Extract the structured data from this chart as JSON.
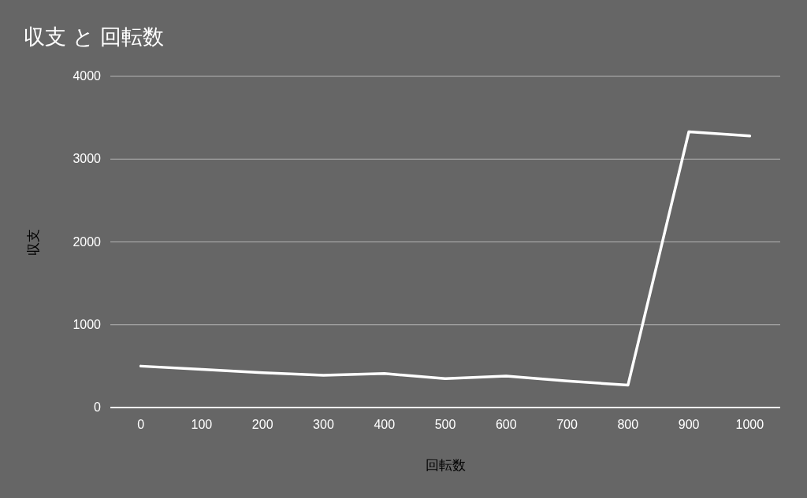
{
  "chart_data": {
    "type": "line",
    "title": "収支 と 回転数",
    "xlabel": "回転数",
    "ylabel": "収支",
    "categories": [
      "0",
      "100",
      "200",
      "300",
      "400",
      "500",
      "600",
      "700",
      "800",
      "900",
      "1000"
    ],
    "series": [
      {
        "color": "#ffffff",
        "values": [
          500,
          460,
          420,
          390,
          410,
          350,
          380,
          320,
          270,
          3330,
          3280
        ]
      }
    ],
    "ylim": [
      0,
      4000
    ],
    "yticks": [
      0,
      1000,
      2000,
      3000,
      4000
    ],
    "grid": "y",
    "marker": "none",
    "line_style": "solid"
  }
}
